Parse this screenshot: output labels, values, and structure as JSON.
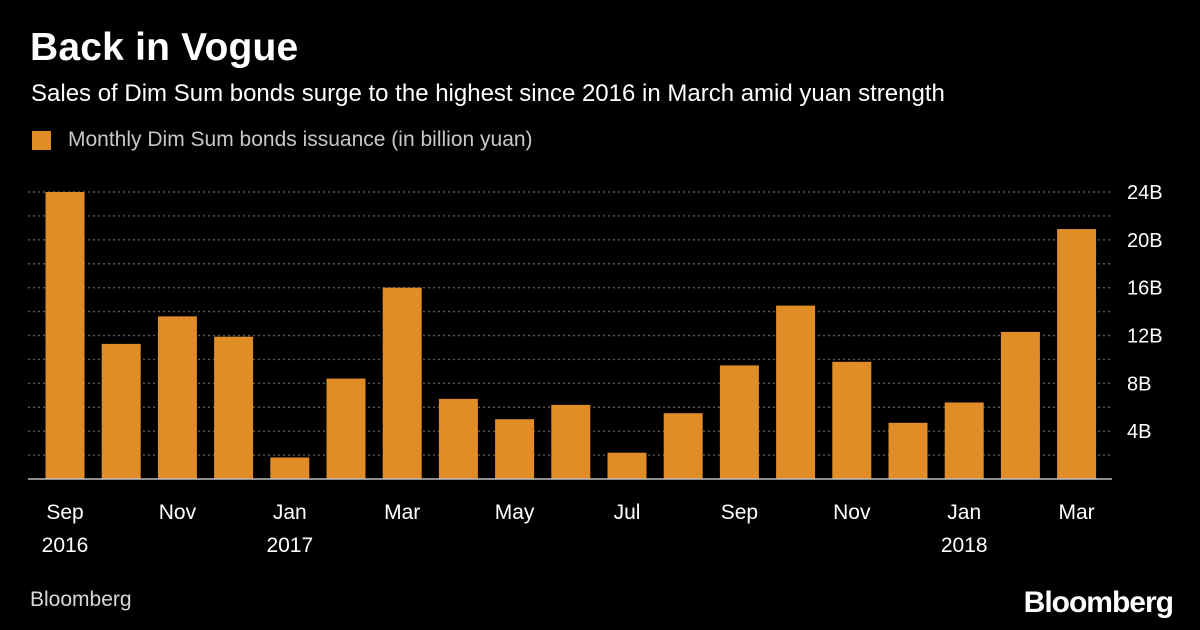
{
  "title": "Back in Vogue",
  "subtitle": "Sales of Dim Sum bonds surge to the highest since 2016 in March amid yuan strength",
  "source": "Bloomberg",
  "brand_logo": "Bloomberg",
  "colors": {
    "background": "#000000",
    "bar": "#e08d27",
    "grid": "#5a5a5a",
    "text": "#ffffff"
  },
  "chart_data": {
    "type": "bar",
    "legend_position": "top-left",
    "grid": true,
    "y_axis_side": "right",
    "ylim": [
      0,
      24
    ],
    "y_ticks": [
      4,
      8,
      12,
      16,
      20,
      24
    ],
    "y_tick_labels": [
      "4B",
      "8B",
      "12B",
      "16B",
      "20B",
      "24B"
    ],
    "x_tick_labels": [
      {
        "index": 0,
        "lines": [
          "Sep",
          "2016"
        ]
      },
      {
        "index": 2,
        "lines": [
          "Nov"
        ]
      },
      {
        "index": 4,
        "lines": [
          "Jan",
          "2017"
        ]
      },
      {
        "index": 6,
        "lines": [
          "Mar"
        ]
      },
      {
        "index": 8,
        "lines": [
          "May"
        ]
      },
      {
        "index": 10,
        "lines": [
          "Jul"
        ]
      },
      {
        "index": 12,
        "lines": [
          "Sep"
        ]
      },
      {
        "index": 14,
        "lines": [
          "Nov"
        ]
      },
      {
        "index": 16,
        "lines": [
          "Jan",
          "2018"
        ]
      },
      {
        "index": 18,
        "lines": [
          "Mar"
        ]
      }
    ],
    "categories": [
      "2016-09",
      "2016-10",
      "2016-11",
      "2016-12",
      "2017-01",
      "2017-02",
      "2017-03",
      "2017-04",
      "2017-05",
      "2017-06",
      "2017-07",
      "2017-08",
      "2017-09",
      "2017-10",
      "2017-11",
      "2017-12",
      "2018-01",
      "2018-02",
      "2018-03"
    ],
    "series": [
      {
        "name": "Monthly Dim Sum bonds issuance (in billion yuan)",
        "values": [
          24.0,
          11.3,
          13.6,
          11.9,
          1.8,
          8.4,
          16.0,
          6.7,
          5.0,
          6.2,
          2.2,
          5.5,
          9.5,
          14.5,
          9.8,
          4.7,
          6.4,
          12.3,
          20.9
        ]
      }
    ]
  }
}
